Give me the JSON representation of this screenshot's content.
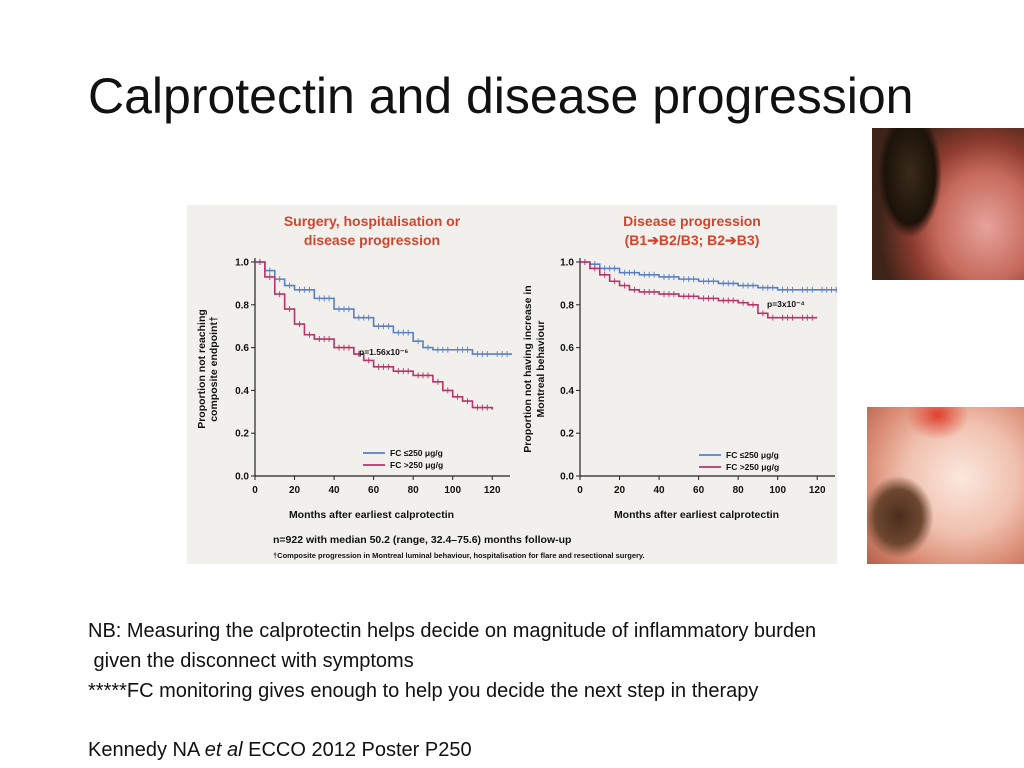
{
  "slide": {
    "title": "Calprotectin and disease progression",
    "notes": [
      "NB: Measuring the calprotectin helps decide on magnitude of inflammatory burden",
      " given the disconnect with symptoms",
      "*****FC monitoring gives enough to help you decide the next step in therapy"
    ],
    "citation": {
      "author": "Kennedy NA ",
      "etal": "et al",
      "rest": " ECCO 2012 Poster P250"
    }
  },
  "figure": {
    "footnote1": "n=922 with median 50.2 (range, 32.4–75.6) months follow-up",
    "footnote2": "†Composite progression in Montreal luminal behaviour, hospitalisation for flare and resectional surgery."
  },
  "colors": {
    "low_fc": "#5b7fc4",
    "high_fc": "#b8336a",
    "title_red": "#d2452d"
  },
  "chart_data": [
    {
      "type": "line",
      "title_lines": [
        "Surgery, hospitalisation or",
        "disease progression"
      ],
      "xlabel": "Months after earliest calprotectin",
      "ylabel_lines": [
        "Proportion not reaching",
        "composite endpoint†"
      ],
      "xlim": [
        0,
        130
      ],
      "ylim": [
        0,
        1.0
      ],
      "xticks": [
        "0",
        "20",
        "40",
        "60",
        "80",
        "100",
        "120"
      ],
      "yticks": [
        "0.0",
        "0.2",
        "0.4",
        "0.6",
        "0.8",
        "1.0"
      ],
      "annotation": "p=1.56x10⁻⁶",
      "legend": [
        "FC ≤250 μg/g",
        "FC >250 μg/g"
      ],
      "series": [
        {
          "name": "FC ≤250 μg/g",
          "color": "#5b7fc4",
          "x": [
            0,
            5,
            10,
            15,
            20,
            30,
            40,
            50,
            60,
            70,
            80,
            85,
            90,
            100,
            110,
            120,
            130
          ],
          "y": [
            1.0,
            0.96,
            0.92,
            0.89,
            0.87,
            0.83,
            0.78,
            0.74,
            0.7,
            0.67,
            0.63,
            0.6,
            0.59,
            0.59,
            0.57,
            0.57,
            0.57
          ]
        },
        {
          "name": "FC >250 μg/g",
          "color": "#b8336a",
          "x": [
            0,
            5,
            10,
            15,
            20,
            25,
            30,
            40,
            50,
            55,
            60,
            70,
            80,
            90,
            95,
            100,
            105,
            110,
            120
          ],
          "y": [
            1.0,
            0.93,
            0.85,
            0.78,
            0.71,
            0.66,
            0.64,
            0.6,
            0.57,
            0.54,
            0.51,
            0.49,
            0.47,
            0.44,
            0.4,
            0.37,
            0.35,
            0.32,
            0.31
          ]
        }
      ]
    },
    {
      "type": "line",
      "title_lines": [
        "Disease progression",
        "(B1➔B2/B3; B2➔B3)"
      ],
      "xlabel": "Months after earliest calprotectin",
      "ylabel_lines": [
        "Proportion not having increase in",
        "Montreal behaviour"
      ],
      "xlim": [
        0,
        130
      ],
      "ylim": [
        0,
        1.0
      ],
      "xticks": [
        "0",
        "20",
        "40",
        "60",
        "80",
        "100",
        "120"
      ],
      "yticks": [
        "0.0",
        "0.2",
        "0.4",
        "0.6",
        "0.8",
        "1.0"
      ],
      "annotation": "p=3x10⁻⁴",
      "legend": [
        "FC ≤250 μg/g",
        "FC >250 μg/g"
      ],
      "series": [
        {
          "name": "FC ≤250 μg/g",
          "color": "#5b7fc4",
          "x": [
            0,
            5,
            10,
            20,
            30,
            40,
            50,
            60,
            70,
            80,
            90,
            100,
            110,
            120,
            132
          ],
          "y": [
            1.0,
            0.99,
            0.97,
            0.95,
            0.94,
            0.93,
            0.92,
            0.91,
            0.9,
            0.89,
            0.88,
            0.87,
            0.87,
            0.87,
            0.87
          ]
        },
        {
          "name": "FC >250 μg/g",
          "color": "#b8336a",
          "x": [
            0,
            5,
            10,
            15,
            20,
            25,
            30,
            40,
            50,
            60,
            70,
            80,
            85,
            90,
            95,
            100,
            110,
            120
          ],
          "y": [
            1.0,
            0.97,
            0.94,
            0.91,
            0.89,
            0.87,
            0.86,
            0.85,
            0.84,
            0.83,
            0.82,
            0.81,
            0.8,
            0.76,
            0.74,
            0.74,
            0.74,
            0.74
          ]
        }
      ]
    }
  ]
}
